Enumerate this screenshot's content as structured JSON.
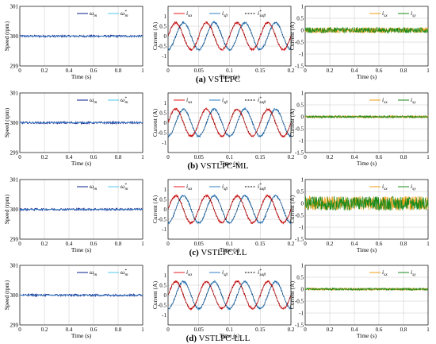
{
  "colors": {
    "speed_meas": "#0a1e8c",
    "speed_ref": "#4fc9f0",
    "i_alpha": "#e41a1c",
    "i_beta": "#2f7fc6",
    "i_ref": "#000000",
    "i_sx": "#f39c12",
    "i_sy": "#1a8a1a",
    "grid": "#c8c8c8"
  },
  "rows": [
    {
      "caption_tag": "(a)",
      "caption_text": "VSTLPC",
      "speed": {
        "ylabel": "Speed (rpm)",
        "xlabel": "Time (s)",
        "legend": [
          "ωm",
          "ω*m"
        ]
      },
      "current": {
        "ylabel": "Current (A)",
        "xlabel": "Time (s)",
        "legend": [
          "isα",
          "isβ",
          "i*sαβ"
        ]
      },
      "harmonic": {
        "ylabel": "Current (A)",
        "xlabel": "Time (s)",
        "legend": [
          "isx",
          "isy"
        ]
      }
    },
    {
      "caption_tag": "(b)",
      "caption_text": "VSTLPC-ML",
      "speed": {
        "ylabel": "Speed (rpm)",
        "xlabel": "Time (s)",
        "legend": [
          "ωm",
          "ω*m"
        ]
      },
      "current": {
        "ylabel": "Current (A)",
        "xlabel": "Time (s)",
        "legend": [
          "isα",
          "isβ",
          "i*sαβ"
        ]
      },
      "harmonic": {
        "ylabel": "Current (A)",
        "xlabel": "Time (s)",
        "legend": [
          "isx",
          "isy"
        ]
      }
    },
    {
      "caption_tag": "(c)",
      "caption_text": "VSTLPC-LL",
      "speed": {
        "ylabel": "Speed (rpm)",
        "xlabel": "Time (s)",
        "legend": [
          "ωm",
          "ω*m"
        ]
      },
      "current": {
        "ylabel": "Current (A)",
        "xlabel": "Time (s)",
        "legend": [
          "isα",
          "isβ",
          "i*sαβ"
        ]
      },
      "harmonic": {
        "ylabel": "Current (A)",
        "xlabel": "Time (s)",
        "legend": [
          "isx",
          "isy"
        ]
      }
    },
    {
      "caption_tag": "(d)",
      "caption_text": "VSTLPC-LLL",
      "speed": {
        "ylabel": "Speed (rpm)",
        "xlabel": "Time (s)",
        "legend": [
          "ωm",
          "ω*m"
        ]
      },
      "current": {
        "ylabel": "Current (A)",
        "xlabel": "Time (s)",
        "legend": [
          "isα",
          "isβ",
          "i*sαβ"
        ]
      },
      "harmonic": {
        "ylabel": "Current (A)",
        "xlabel": "Time (s)",
        "legend": [
          "isx",
          "isy"
        ]
      }
    }
  ],
  "chart_data": [
    {
      "type": "line",
      "panel": "speed",
      "xlim": [
        0,
        1
      ],
      "ylim": [
        299,
        301
      ],
      "xticks": [
        "0",
        "0.2",
        "0.4",
        "0.6",
        "0.8",
        "1"
      ],
      "yticks": [
        "299",
        "300",
        "301"
      ],
      "series": [
        {
          "name": "ωm",
          "value": 300
        },
        {
          "name": "ω*m",
          "value": 300
        }
      ]
    },
    {
      "type": "line",
      "panel": "stator-current-alpha-beta",
      "xlim": [
        0,
        0.2
      ],
      "ylim": [
        -1.5,
        1.5
      ],
      "xticks": [
        "0",
        "0.05",
        "0.1",
        "0.15",
        "0.2"
      ],
      "yticks": [
        "-1",
        "-0.5",
        "0",
        "0.5",
        "1"
      ],
      "amplitude": 0.68,
      "frequency_hz": 20,
      "series": [
        {
          "name": "isα"
        },
        {
          "name": "isβ"
        },
        {
          "name": "i*sαβ"
        }
      ]
    },
    {
      "type": "line",
      "panel": "xy-current",
      "xlim": [
        0,
        1
      ],
      "ylim": [
        -1.5,
        1
      ],
      "xticks": [
        "0",
        "0.2",
        "0.4",
        "0.6",
        "0.8",
        "1"
      ],
      "yticks": [
        "-1.5",
        "-1",
        "-0.5",
        "0",
        "0.5",
        "1"
      ],
      "noise_amplitude": [
        0.12,
        0.05,
        0.3,
        0.05
      ],
      "series": [
        {
          "name": "isx"
        },
        {
          "name": "isy"
        }
      ]
    }
  ]
}
